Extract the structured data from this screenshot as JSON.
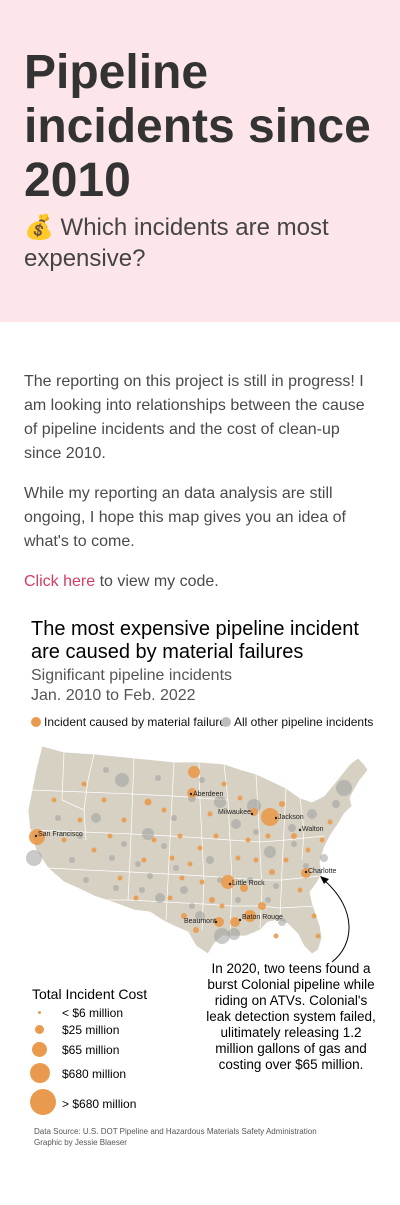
{
  "hero": {
    "title": "Pipeline incidents since 2010",
    "subtitle": "💰 Which incidents are most expensive?"
  },
  "intro": {
    "paragraph1": "The reporting on this project is still in progress! I am looking into relationships between the cause of pipeline incidents and the cost of clean-up since 2010.",
    "paragraph2": "While my reporting an data analysis are still ongoing, I hope this map gives you an idea of what's to come.",
    "link_text": "Click here",
    "link_suffix": " to view my code."
  },
  "graphic": {
    "title": "The most expensive pipeline incident are caused by material failures",
    "subtitle_line1": "Significant pipeline incidents",
    "subtitle_line2": "Jan. 2010 to Feb. 2022",
    "legend": {
      "material_failure": "Incident caused by material failure",
      "other": "All other pipeline incidents"
    },
    "colors": {
      "material_failure": "#ea9a4e",
      "other": "#bdbdbd",
      "land": "#d6d1c3",
      "borders": "#ffffff"
    },
    "cities": [
      "Aberdeen",
      "Milwaukee",
      "Jackson",
      "Walton",
      "San Francisco",
      "Charlotte",
      "Little Rock",
      "Baton Rouge",
      "Beaumont"
    ],
    "annotation": "In 2020, two teens found a burst Colonial pipeline while riding on ATVs. Colonial's leak detection system failed, ulitimately releasing 1.2 million gallons of gas and costing over $65 million.",
    "size_legend": {
      "title": "Total Incident Cost",
      "items": [
        "< $6 million",
        "$25 million",
        "$65 million",
        "$680 million",
        "> $680 million"
      ]
    },
    "source_line1": "Data Source: U.S. DOT Pipeline and Hazardous Materials Safety Administration",
    "source_line2": "Graphic by Jessie Blaeser"
  }
}
